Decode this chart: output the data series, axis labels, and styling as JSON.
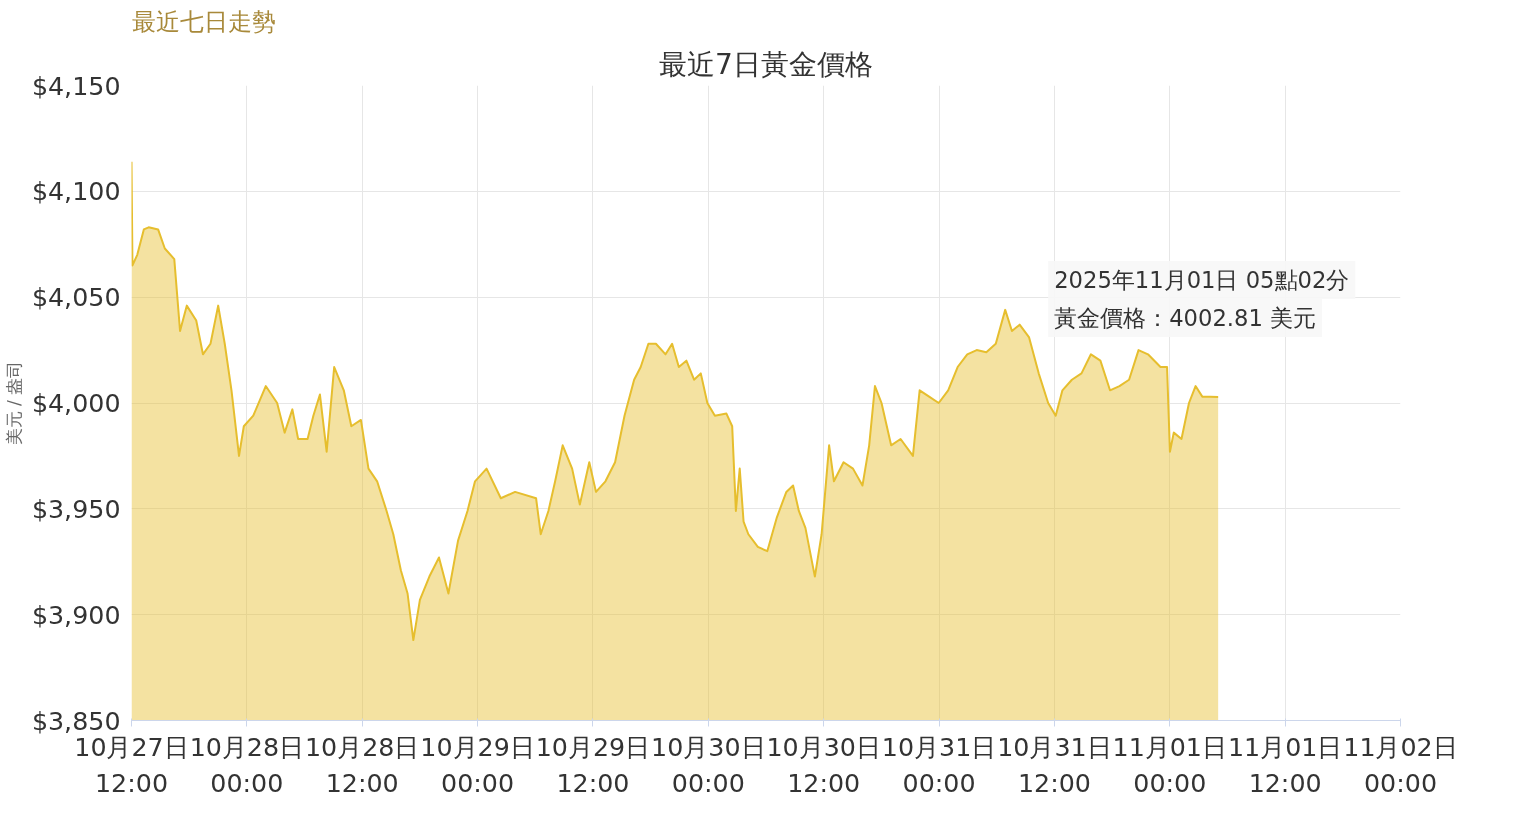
{
  "chart_data": {
    "type": "area",
    "title": "最近7日黃金價格",
    "ylabel": "美元 / 盎司",
    "annotations": [
      "最近七日走勢",
      "2025年11月01日 05點02分",
      {
        "text": "黃金價格：4002.81 美元",
        "x": "2025-11-01T05:02",
        "y": 4002.81
      }
    ],
    "x": [
      "2025-10-27T12:00",
      "2025-10-27T12:06",
      "2025-10-27T12:36",
      "2025-10-27T13:17",
      "2025-10-27T13:47",
      "2025-10-27T14:46",
      "2025-10-27T15:28",
      "2025-10-27T16:27",
      "2025-10-27T17:03",
      "2025-10-27T17:45",
      "2025-10-27T18:44",
      "2025-10-27T19:26",
      "2025-10-27T20:13",
      "2025-10-27T21:01",
      "2025-10-27T21:42",
      "2025-10-27T22:24",
      "2025-10-27T23:11",
      "2025-10-27T23:41",
      "2025-10-28T00:40",
      "2025-10-28T01:58",
      "2025-10-28T03:09",
      "2025-10-28T03:56",
      "2025-10-28T04:44",
      "2025-10-28T05:20",
      "2025-10-28T06:19",
      "2025-10-28T06:55",
      "2025-10-28T07:36",
      "2025-10-28T08:18",
      "2025-10-28T09:05",
      "2025-10-28T10:05",
      "2025-10-28T10:52",
      "2025-10-28T11:52",
      "2025-10-28T12:39",
      "2025-10-28T13:33",
      "2025-10-28T14:32",
      "2025-10-28T15:14",
      "2025-10-28T16:01",
      "2025-10-28T16:43",
      "2025-10-28T17:19",
      "2025-10-28T18:00",
      "2025-10-28T18:59",
      "2025-10-28T19:59",
      "2025-10-28T20:58",
      "2025-10-28T21:58",
      "2025-10-28T22:57",
      "2025-10-28T23:44",
      "2025-10-29T00:56",
      "2025-10-29T02:25",
      "2025-10-29T03:54",
      "2025-10-29T06:05",
      "2025-10-29T06:34",
      "2025-10-29T07:22",
      "2025-10-29T08:04",
      "2025-10-29T08:51",
      "2025-10-29T09:50",
      "2025-10-29T10:38",
      "2025-10-29T11:37",
      "2025-10-29T12:19",
      "2025-10-29T13:18",
      "2025-10-29T14:18",
      "2025-10-29T15:17",
      "2025-10-29T16:17",
      "2025-10-29T16:58",
      "2025-10-29T17:46",
      "2025-10-29T18:33",
      "2025-10-29T19:33",
      "2025-10-29T20:14",
      "2025-10-29T20:56",
      "2025-10-29T21:43",
      "2025-10-29T22:31",
      "2025-10-29T23:13",
      "2025-10-29T23:54",
      "2025-10-30T00:41",
      "2025-10-30T01:53",
      "2025-10-30T02:29",
      "2025-10-30T02:52",
      "2025-10-30T03:16",
      "2025-10-30T03:40",
      "2025-10-30T04:10",
      "2025-10-30T05:09",
      "2025-10-30T06:08",
      "2025-10-30T07:08",
      "2025-10-30T08:07",
      "2025-10-30T08:49",
      "2025-10-30T09:25",
      "2025-10-30T10:06",
      "2025-10-30T11:05",
      "2025-10-30T11:47",
      "2025-10-30T12:34",
      "2025-10-30T13:04",
      "2025-10-30T14:04",
      "2025-10-30T15:03",
      "2025-10-30T16:02",
      "2025-10-30T16:44",
      "2025-10-30T17:20",
      "2025-10-30T18:01",
      "2025-10-30T19:01",
      "2025-10-30T20:00",
      "2025-10-30T21:17",
      "2025-10-30T21:59",
      "2025-10-30T22:58",
      "2025-10-30T23:58",
      "2025-10-31T00:57",
      "2025-10-31T01:56",
      "2025-10-31T02:56",
      "2025-10-31T03:55",
      "2025-10-31T04:55",
      "2025-10-31T05:54",
      "2025-10-31T06:53",
      "2025-10-31T07:35",
      "2025-10-31T08:23",
      "2025-10-31T09:22",
      "2025-10-31T10:22",
      "2025-10-31T11:21",
      "2025-10-31T12:08",
      "2025-10-31T12:50",
      "2025-10-31T13:49",
      "2025-10-31T14:49",
      "2025-10-31T15:48",
      "2025-10-31T16:47",
      "2025-10-31T17:47",
      "2025-10-31T18:46",
      "2025-10-31T19:46",
      "2025-10-31T20:45",
      "2025-10-31T21:44",
      "2025-10-31T23:02",
      "2025-10-31T23:43",
      "2025-11-01T00:01",
      "2025-11-01T00:25",
      "2025-11-01T01:13",
      "2025-11-01T02:00",
      "2025-11-01T02:41",
      "2025-11-01T03:23",
      "2025-11-01T04:11",
      "2025-11-01T05:02"
    ],
    "series": [
      {
        "color": "#e6be2e",
        "values": [
          4114,
          4065,
          4070,
          4082,
          4083,
          4082,
          4073,
          4068,
          4034,
          4046,
          4039,
          4023,
          4028,
          4046,
          4028,
          4006,
          3975,
          3989,
          3994,
          4008,
          4000,
          3986,
          3997,
          3983,
          3983,
          3994,
          4004,
          3977,
          4017,
          4006,
          3989,
          3992,
          3969,
          3963,
          3949,
          3938,
          3921,
          3910,
          3888,
          3907,
          3918,
          3927,
          3910,
          3935,
          3949,
          3963,
          3969,
          3955,
          3958,
          3955,
          3938,
          3949,
          3963,
          3980,
          3969,
          3952,
          3972,
          3958,
          3963,
          3972,
          3994,
          4011,
          4017,
          4028,
          4028,
          4023,
          4028,
          4017,
          4020,
          4011,
          4014,
          4000,
          3994,
          3995,
          3989,
          3949,
          3969,
          3944,
          3938,
          3932,
          3930,
          3946,
          3958,
          3961,
          3949,
          3941,
          3918,
          3938,
          3980,
          3963,
          3972,
          3969,
          3961,
          3980,
          4008,
          4000,
          3980,
          3983,
          3975,
          4006,
          4003,
          4000,
          4006,
          4017,
          4023,
          4025,
          4024,
          4028,
          4044,
          4034,
          4037,
          4031,
          4014,
          4000,
          3994,
          4006,
          4011,
          4014,
          4023,
          4020,
          4006,
          4008,
          4011,
          4025,
          4023,
          4017,
          4017,
          3977,
          3986,
          3983,
          4000,
          4008,
          4003,
          4003,
          4002.81
        ]
      }
    ],
    "xlim": [
      "2025-10-27T12:00",
      "2025-11-02T00:00"
    ],
    "xticks": [
      {
        "value": "2025-10-27T12:00",
        "label": "10月27日\n12:00"
      },
      {
        "value": "2025-10-28T00:00",
        "label": "10月28日\n00:00"
      },
      {
        "value": "2025-10-28T12:00",
        "label": "10月28日\n12:00"
      },
      {
        "value": "2025-10-29T00:00",
        "label": "10月29日\n00:00"
      },
      {
        "value": "2025-10-29T12:00",
        "label": "10月29日\n12:00"
      },
      {
        "value": "2025-10-30T00:00",
        "label": "10月30日\n00:00"
      },
      {
        "value": "2025-10-30T12:00",
        "label": "10月30日\n12:00"
      },
      {
        "value": "2025-10-31T00:00",
        "label": "10月31日\n00:00"
      },
      {
        "value": "2025-10-31T12:00",
        "label": "10月31日\n12:00"
      },
      {
        "value": "2025-11-01T00:00",
        "label": "11月01日\n00:00"
      },
      {
        "value": "2025-11-01T12:00",
        "label": "11月01日\n12:00"
      },
      {
        "value": "2025-11-02T00:00",
        "label": "11月02日\n00:00"
      }
    ],
    "ylim": [
      3850,
      4150
    ],
    "yticks": [
      {
        "value": 3850,
        "label": "$3,850"
      },
      {
        "value": 3900,
        "label": "$3,900"
      },
      {
        "value": 3950,
        "label": "$3,950"
      },
      {
        "value": 4000,
        "label": "$4,000"
      },
      {
        "value": 4050,
        "label": "$4,050"
      },
      {
        "value": 4100,
        "label": "$4,100"
      },
      {
        "value": 4150,
        "label": "$4,150"
      }
    ],
    "grid": true
  }
}
